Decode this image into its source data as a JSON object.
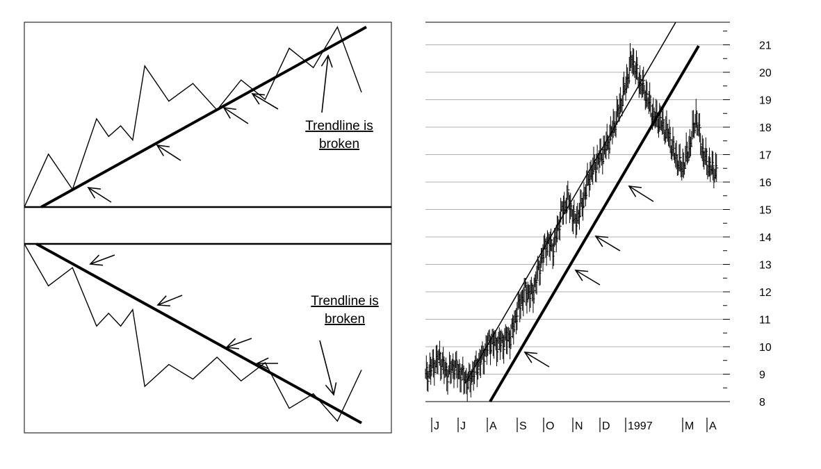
{
  "colors": {
    "ink": "#000000",
    "grid": "#b0b0b0",
    "background": "#ffffff"
  },
  "left_panel": {
    "uptrend": {
      "caption_line1": "Trendline is",
      "caption_line2": "broken"
    },
    "downtrend": {
      "caption_line1": "Trendline is",
      "caption_line2": "broken"
    }
  },
  "chart_data": [
    {
      "type": "line",
      "panel": "uptrend",
      "title": "",
      "x": [
        0,
        1,
        2,
        3,
        3.5,
        4,
        4.5,
        5,
        6,
        7,
        8,
        9,
        10,
        11,
        12,
        13,
        14
      ],
      "series": [
        {
          "values": [
            0,
            3,
            1,
            5,
            4,
            4.6,
            3.8,
            8,
            6,
            7,
            5.5,
            7.2,
            6.1,
            9,
            7.9,
            10.2,
            6.5
          ]
        }
      ],
      "trendline": {
        "from": [
          0.7,
          0
        ],
        "to": [
          14.2,
          10.2
        ]
      },
      "arrows": "touch points on trendline, plus arrow where trendline is broken",
      "grid": false
    },
    {
      "type": "line",
      "panel": "downtrend",
      "title": "",
      "x": [
        0,
        1,
        2,
        3,
        3.5,
        4,
        4.5,
        5,
        6,
        7,
        8,
        9,
        10,
        11,
        12,
        13,
        14
      ],
      "series": [
        {
          "values": [
            10,
            7.7,
            8.7,
            5.5,
            6.2,
            5.5,
            6.4,
            2.2,
            3.4,
            2.6,
            3.8,
            2.5,
            3.5,
            1,
            1.8,
            0.3,
            3.1
          ]
        }
      ],
      "trendline": {
        "from": [
          0.5,
          10
        ],
        "to": [
          14,
          0.2
        ]
      },
      "arrows": "touch points on trendline, plus arrow where trendline is broken",
      "grid": false
    },
    {
      "type": "line",
      "panel": "price",
      "title": "",
      "xlabel": "",
      "ylabel": "",
      "ylim": [
        8,
        21.5
      ],
      "yticks": [
        "8",
        "9",
        "10",
        "11",
        "12",
        "13",
        "14",
        "15",
        "16",
        "17",
        "18",
        "19",
        "20",
        "21"
      ],
      "xticks": [
        "J",
        "J",
        "A",
        "S",
        "O",
        "N",
        "D",
        "1997",
        "M",
        "A"
      ],
      "x": [
        "J",
        "",
        "",
        "",
        "J",
        "",
        "",
        "",
        "A",
        "",
        "",
        "",
        "S",
        "",
        "",
        "",
        "O",
        "",
        "",
        "",
        "N",
        "",
        "",
        "",
        "D",
        "",
        "",
        "",
        "1997",
        "",
        "",
        "",
        "",
        "",
        "",
        "",
        "M",
        "",
        "",
        "",
        "A",
        ""
      ],
      "series": [
        {
          "name": "",
          "values": [
            8.9,
            9.3,
            9.6,
            9.0,
            9.3,
            9.0,
            8.7,
            9.2,
            9.6,
            10.2,
            10.1,
            10.2,
            10.4,
            11.4,
            12.0,
            11.9,
            12.9,
            13.8,
            13.6,
            14.8,
            15.4,
            14.5,
            15.2,
            16.2,
            16.7,
            17.1,
            17.7,
            18.5,
            19.4,
            20.5,
            19.7,
            19.2,
            18.4,
            18.2,
            17.8,
            17.0,
            16.5,
            17.2,
            18.4,
            17.0,
            16.5,
            16.4
          ]
        }
      ],
      "channel_upper": {
        "from": [
          "J",
          8.7
        ],
        "to": [
          "1997",
          21.9
        ]
      },
      "trendline": {
        "from": [
          "A",
          8.0
        ],
        "to": [
          "M",
          21.3
        ]
      },
      "grid": true
    }
  ]
}
